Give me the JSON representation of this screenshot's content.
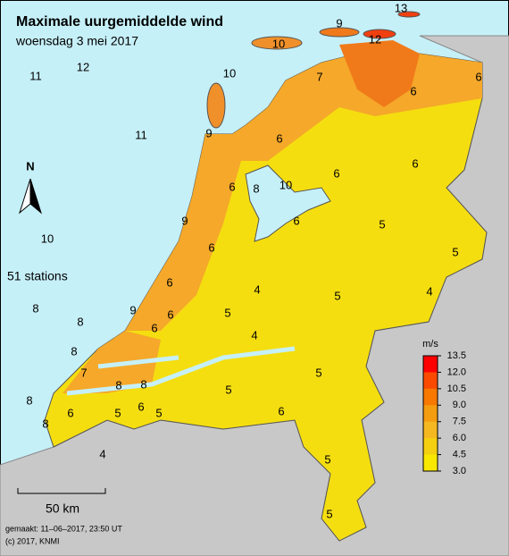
{
  "title": "Maximale uurgemiddelde wind",
  "subtitle": "woensdag 3 mei 2017",
  "stations_label": "51 stations",
  "north": "N",
  "scale": "50 km",
  "footer": [
    "gemaakt: 11–06–2017, 23:50 UT",
    "(c) 2017, KNMI"
  ],
  "legend": {
    "unit": "m/s",
    "ticks": [
      13.5,
      {
        "value": 12,
        "label": "12.0"
      },
      10.5,
      {
        "value": 9,
        "label": "9.0"
      },
      7.5,
      {
        "value": 6,
        "label": "6.0"
      },
      4.5,
      {
        "value": 3,
        "label": "3.0"
      }
    ],
    "colors": [
      "#ff0000",
      "#fb4a00",
      "#f87800",
      "#f59d10",
      "#f5b820",
      "#f5d010",
      "#f8e800"
    ]
  },
  "stations": [
    13,
    9,
    12,
    10,
    12,
    11,
    10,
    7,
    6,
    6,
    11,
    9,
    6,
    6,
    6,
    6,
    8,
    10,
    9,
    6,
    5,
    10,
    5,
    6,
    6,
    4,
    5,
    4,
    8,
    9,
    6,
    5,
    8,
    6,
    4,
    8,
    7,
    8,
    8,
    5,
    5,
    8,
    8,
    6,
    6,
    5,
    5,
    6,
    4,
    5,
    5
  ]
}
